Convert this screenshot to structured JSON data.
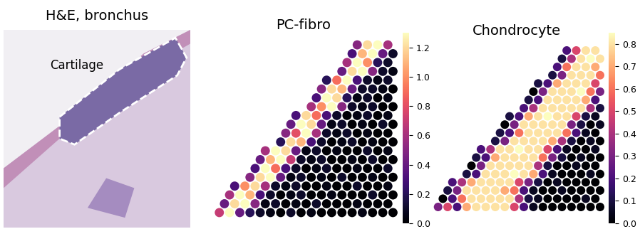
{
  "chart_data": [
    {
      "type": "image",
      "title": "H&E, bronchus",
      "annotation": "Cartilage"
    },
    {
      "type": "heatmap",
      "title": "PC-fibro",
      "colorbar": {
        "range": [
          0.0,
          1.3
        ],
        "ticks": [
          0.0,
          0.2,
          0.4,
          0.6,
          0.8,
          1.0,
          1.2
        ]
      },
      "cells": [
        [
          null,
          null,
          null,
          null,
          null,
          null,
          null,
          null,
          null,
          null,
          null,
          null,
          null,
          null,
          0.5,
          1.2,
          1.3,
          0.6
        ],
        [
          null,
          null,
          null,
          null,
          null,
          null,
          null,
          null,
          null,
          null,
          null,
          null,
          null,
          0.3,
          1.1,
          1.3,
          0.4,
          0.1
        ],
        [
          null,
          null,
          null,
          null,
          null,
          null,
          null,
          null,
          null,
          null,
          null,
          null,
          null,
          0.6,
          1.3,
          1.0,
          0.2,
          0.1
        ],
        [
          null,
          null,
          null,
          null,
          null,
          null,
          null,
          null,
          null,
          null,
          null,
          null,
          0.4,
          1.2,
          1.3,
          0.5,
          0.1,
          0.05
        ],
        [
          null,
          null,
          null,
          null,
          null,
          null,
          null,
          null,
          null,
          null,
          null,
          0.2,
          0.9,
          1.3,
          0.3,
          0.1,
          0.05,
          0.1
        ],
        [
          null,
          null,
          null,
          null,
          null,
          null,
          null,
          null,
          null,
          null,
          0.5,
          1.2,
          1.1,
          0.4,
          0.1,
          0.1,
          0.05,
          0.0
        ],
        [
          null,
          null,
          null,
          null,
          null,
          null,
          null,
          null,
          null,
          null,
          0.3,
          1.3,
          1.2,
          0.2,
          0.05,
          0.1,
          0.0,
          0.05
        ],
        [
          null,
          null,
          null,
          null,
          null,
          null,
          null,
          null,
          null,
          0.6,
          1.0,
          1.3,
          0.5,
          0.1,
          0.05,
          0.1,
          0.0,
          0.0
        ],
        [
          null,
          null,
          null,
          null,
          null,
          null,
          null,
          null,
          0.3,
          1.2,
          0.9,
          0.3,
          0.1,
          0.0,
          0.05,
          0.1,
          0.0,
          0.05
        ],
        [
          null,
          null,
          null,
          null,
          null,
          null,
          null,
          0.4,
          1.3,
          1.2,
          0.4,
          0.05,
          0.1,
          0.0,
          0.05,
          0.0,
          0.1,
          0.0
        ],
        [
          null,
          null,
          null,
          null,
          null,
          null,
          null,
          0.5,
          0.8,
          1.3,
          0.6,
          0.1,
          0.05,
          0.1,
          0.0,
          0.05,
          0.0,
          0.0
        ],
        [
          null,
          null,
          null,
          null,
          null,
          null,
          0.2,
          1.2,
          1.1,
          0.3,
          0.1,
          0.0,
          0.05,
          0.1,
          0.0,
          0.05,
          0.0,
          0.0
        ],
        [
          null,
          null,
          null,
          null,
          null,
          0.6,
          1.3,
          1.2,
          0.4,
          0.05,
          0.1,
          0.0,
          0.05,
          0.0,
          0.0,
          0.1,
          0.0,
          0.05
        ],
        [
          null,
          null,
          null,
          null,
          0.4,
          1.1,
          1.3,
          0.7,
          0.1,
          0.05,
          0.1,
          0.0,
          0.0,
          0.05,
          0.0,
          0.1,
          0.0,
          0.0
        ],
        [
          null,
          null,
          null,
          null,
          0.3,
          1.3,
          0.9,
          0.3,
          0.1,
          0.0,
          0.05,
          0.1,
          0.0,
          0.0,
          0.05,
          0.0,
          0.0,
          0.1
        ],
        [
          null,
          null,
          null,
          0.5,
          1.2,
          1.3,
          0.4,
          0.05,
          0.1,
          0.0,
          0.05,
          0.0,
          0.1,
          0.0,
          0.0,
          0.05,
          0.0,
          0.0
        ],
        [
          null,
          null,
          0.3,
          1.0,
          1.2,
          0.6,
          0.1,
          0.05,
          0.1,
          0.0,
          0.0,
          0.05,
          0.0,
          0.0,
          0.1,
          0.0,
          0.0,
          0.05
        ],
        [
          null,
          0.6,
          1.3,
          1.1,
          0.3,
          0.1,
          0.0,
          0.05,
          0.1,
          0.0,
          0.0,
          0.05,
          0.0,
          0.0,
          0.0,
          0.1,
          0.0,
          0.0
        ],
        [
          null,
          0.4,
          1.2,
          1.3,
          0.5,
          0.05,
          0.1,
          0.0,
          0.05,
          0.0,
          0.1,
          0.0,
          0.0,
          0.0,
          0.05,
          0.0,
          0.0,
          0.0
        ],
        [
          0.7,
          1.3,
          0.4,
          0.2,
          0.1,
          0.05,
          0.0,
          0.1,
          0.0,
          0.05,
          0.0,
          0.0,
          0.0,
          0.0,
          0.05,
          0.0,
          0.0,
          0.0
        ]
      ]
    },
    {
      "type": "heatmap",
      "title": "Chondrocyte",
      "colorbar": {
        "range": [
          0.0,
          0.85
        ],
        "ticks": [
          0.0,
          0.1,
          0.2,
          0.3,
          0.4,
          0.5,
          0.6,
          0.7,
          0.8
        ]
      },
      "cells": [
        [
          null,
          null,
          null,
          null,
          null,
          null,
          null,
          null,
          null,
          null,
          null,
          null,
          null,
          null,
          0.2,
          0.5,
          0.8,
          0.8
        ],
        [
          null,
          null,
          null,
          null,
          null,
          null,
          null,
          null,
          null,
          null,
          null,
          null,
          null,
          0.1,
          0.4,
          0.8,
          0.85,
          0.8
        ],
        [
          null,
          null,
          null,
          null,
          null,
          null,
          null,
          null,
          null,
          null,
          null,
          null,
          null,
          0.2,
          0.6,
          0.8,
          0.8,
          0.7
        ],
        [
          null,
          null,
          null,
          null,
          null,
          null,
          null,
          null,
          null,
          null,
          null,
          null,
          0.1,
          0.3,
          0.8,
          0.8,
          0.8,
          0.6
        ],
        [
          null,
          null,
          null,
          null,
          null,
          null,
          null,
          null,
          null,
          null,
          null,
          0.1,
          0.2,
          0.7,
          0.8,
          0.8,
          0.8,
          0.5
        ],
        [
          null,
          null,
          null,
          null,
          null,
          null,
          null,
          null,
          null,
          null,
          0.0,
          0.3,
          0.8,
          0.8,
          0.8,
          0.85,
          0.6,
          0.3
        ],
        [
          null,
          null,
          null,
          null,
          null,
          null,
          null,
          null,
          null,
          null,
          0.1,
          0.2,
          0.8,
          0.8,
          0.8,
          0.8,
          0.7,
          0.2
        ],
        [
          null,
          null,
          null,
          null,
          null,
          null,
          null,
          null,
          null,
          0.2,
          0.4,
          0.8,
          0.8,
          0.8,
          0.8,
          0.8,
          0.4,
          0.1
        ],
        [
          null,
          null,
          null,
          null,
          null,
          null,
          null,
          null,
          0.1,
          0.2,
          0.7,
          0.8,
          0.85,
          0.8,
          0.8,
          0.5,
          0.1,
          0.05
        ],
        [
          null,
          null,
          null,
          null,
          null,
          null,
          null,
          0.0,
          0.3,
          0.8,
          0.8,
          0.8,
          0.8,
          0.8,
          0.3,
          0.1,
          0.0,
          0.05
        ],
        [
          null,
          null,
          null,
          null,
          null,
          null,
          null,
          0.1,
          0.2,
          0.6,
          0.8,
          0.8,
          0.8,
          0.8,
          0.6,
          0.2,
          0.05,
          0.0
        ],
        [
          null,
          null,
          null,
          null,
          null,
          null,
          0.1,
          0.3,
          0.8,
          0.8,
          0.8,
          0.8,
          0.7,
          0.4,
          0.1,
          0.0,
          0.05,
          0.0
        ],
        [
          null,
          null,
          null,
          null,
          null,
          0.2,
          0.4,
          0.8,
          0.8,
          0.85,
          0.8,
          0.8,
          0.5,
          0.2,
          0.05,
          0.0,
          0.0,
          0.05
        ],
        [
          null,
          null,
          null,
          null,
          0.1,
          0.2,
          0.7,
          0.8,
          0.8,
          0.8,
          0.8,
          0.6,
          0.3,
          0.1,
          0.0,
          0.05,
          0.0,
          0.0
        ],
        [
          null,
          null,
          null,
          null,
          0.0,
          0.3,
          0.8,
          0.8,
          0.8,
          0.8,
          0.8,
          0.4,
          0.1,
          0.0,
          0.0,
          0.05,
          0.0,
          0.0
        ],
        [
          null,
          null,
          null,
          0.1,
          0.2,
          0.8,
          0.8,
          0.8,
          0.85,
          0.8,
          0.7,
          0.2,
          0.05,
          0.0,
          0.0,
          0.0,
          0.05,
          0.0
        ],
        [
          null,
          null,
          0.2,
          0.4,
          0.7,
          0.8,
          0.8,
          0.8,
          0.8,
          0.5,
          0.3,
          0.1,
          0.0,
          0.05,
          0.0,
          0.0,
          0.0,
          0.0
        ],
        [
          null,
          0.1,
          0.3,
          0.8,
          0.8,
          0.8,
          0.8,
          0.7,
          0.6,
          0.2,
          0.05,
          0.0,
          0.0,
          0.05,
          0.0,
          0.0,
          0.0,
          0.0
        ],
        [
          null,
          0.0,
          0.2,
          0.6,
          0.8,
          0.8,
          0.8,
          0.8,
          0.8,
          0.4,
          0.1,
          0.05,
          0.0,
          0.0,
          0.0,
          0.0,
          0.05,
          0.0
        ],
        [
          0.3,
          0.5,
          0.2,
          0.7,
          0.8,
          0.8,
          0.8,
          0.8,
          0.5,
          0.2,
          0.05,
          0.0,
          0.0,
          0.0,
          0.0,
          0.0,
          0.0,
          0.0
        ]
      ]
    }
  ]
}
